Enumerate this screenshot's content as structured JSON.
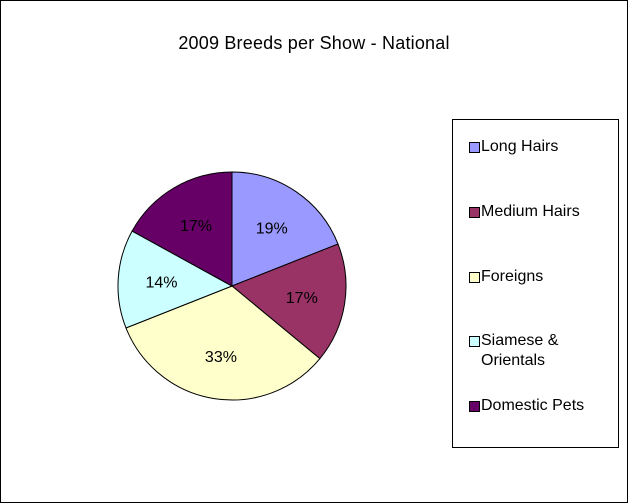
{
  "chart_data": {
    "type": "pie",
    "title": "2009 Breeds per Show - National",
    "categories": [
      "Long Hairs",
      "Medium Hairs",
      "Foreigns",
      "Siamese & Orientals",
      "Domestic Pets"
    ],
    "values": [
      19,
      17,
      33,
      14,
      17
    ],
    "labels": [
      "19%",
      "17%",
      "33%",
      "14%",
      "17%"
    ],
    "colors": [
      "#9999ff",
      "#993366",
      "#ffffcc",
      "#ccffff",
      "#660066"
    ],
    "legend_position": "right"
  }
}
